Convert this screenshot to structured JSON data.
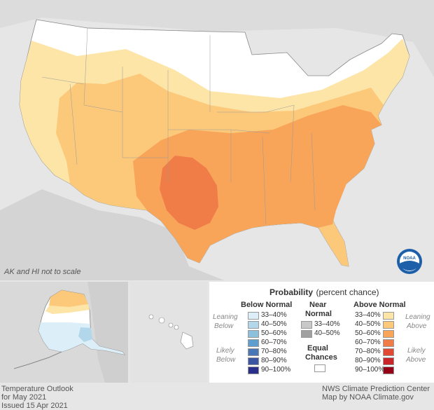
{
  "map": {
    "note": "AK and HI not to scale",
    "logo": "NOAA"
  },
  "legend": {
    "title": "Probability",
    "subtitle": "(percent chance)",
    "below_header": "Below Normal",
    "near_header_1": "Near",
    "near_header_2": "Normal",
    "above_header": "Above Normal",
    "leaning_below_1": "Leaning",
    "leaning_below_2": "Below",
    "likely_below_1": "Likely",
    "likely_below_2": "Below",
    "leaning_above_1": "Leaning",
    "leaning_above_2": "Above",
    "likely_above_1": "Likely",
    "likely_above_2": "Above",
    "equal_1": "Equal",
    "equal_2": "Chances",
    "below": [
      {
        "label": "33–40%",
        "color": "#dceef8"
      },
      {
        "label": "40–50%",
        "color": "#b3d7ea"
      },
      {
        "label": "50–60%",
        "color": "#8cc1de"
      },
      {
        "label": "60–70%",
        "color": "#5f9fcf"
      },
      {
        "label": "70–80%",
        "color": "#4a77b5"
      },
      {
        "label": "80–90%",
        "color": "#3c55a3"
      },
      {
        "label": "90–100%",
        "color": "#2b2f8c"
      }
    ],
    "near": [
      {
        "label": "33–40%",
        "color": "#c8c8c8"
      },
      {
        "label": "40–50%",
        "color": "#a0a0a0"
      }
    ],
    "above": [
      {
        "label": "33–40%",
        "color": "#fde5a8"
      },
      {
        "label": "40–50%",
        "color": "#fcc97a"
      },
      {
        "label": "50–60%",
        "color": "#f8a55a"
      },
      {
        "label": "60–70%",
        "color": "#f07d48"
      },
      {
        "label": "70–80%",
        "color": "#e04a35"
      },
      {
        "label": "80–90%",
        "color": "#c8262a"
      },
      {
        "label": "90–100%",
        "color": "#960016"
      }
    ]
  },
  "footer": {
    "left_1": "Temperature Outlook",
    "left_2": "for May 2021",
    "left_3": "Issued 15 Apr 2021",
    "right_1": "NWS Climate Prediction Center",
    "right_2": "Map by NOAA Climate.gov"
  }
}
